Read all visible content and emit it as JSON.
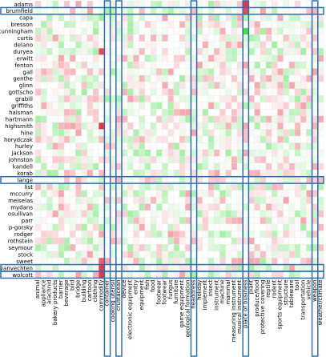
{
  "chart_data": {
    "type": "heatmap",
    "rows": [
      "adams",
      "brumfield",
      "capa",
      "bresson",
      "cunningham",
      "curtis",
      "delano",
      "duryea",
      "erwitt",
      "fenton",
      "gall",
      "genthe",
      "glinn",
      "gottscho",
      "grabill",
      "griffiths",
      "halsman",
      "hartmann",
      "highsmith",
      "hine",
      "horydczak",
      "hurley",
      "jackson",
      "johnston",
      "kandell",
      "korab",
      "lange",
      "list",
      "mccurry",
      "meiselas",
      "mydans",
      "osullivan",
      "parr",
      "p-gorsky",
      "rodger",
      "rothstein",
      "seymour",
      "stock",
      "sweet",
      "vanvechten",
      "wolcott"
    ],
    "columns": [
      "animal",
      "appliance",
      "arachnid",
      "bakery products",
      "barrier",
      "beverage",
      "bird",
      "bridge",
      "building",
      "cartoon",
      "clothing",
      "commodity",
      "container",
      "cooking utensil",
      "crustacean",
      "device",
      "electronic equipment",
      "entry",
      "equipment",
      "fish",
      "food",
      "footwear",
      "footwear",
      "fungus",
      "furniture",
      "game equipment",
      "geological formation",
      "headdress",
      "holiday",
      "implement",
      "insect",
      "instrument",
      "machine",
      "mammal",
      "measuring instrument",
      "musical instrument",
      "place of business",
      "plant",
      "produce/food",
      "protective covering",
      "reptile",
      "rodent",
      "sports equipment",
      "structure",
      "tableware",
      "tool",
      "transportation",
      "vehicle",
      "weapon",
      "weather/climate"
    ],
    "highlighted_rows": [
      "brumfield",
      "lange",
      "vanvechten",
      "wolcott"
    ],
    "highlighted_columns": [
      "container",
      "crustacean",
      "headdress",
      "place of business",
      "weapon"
    ],
    "colors": {
      "positive": "#33dd33",
      "negative": "#ee3344",
      "neutral": "#ffffff",
      "highlight": "#2f6fb0"
    },
    "strong_cells": [
      {
        "row": "adams",
        "column": "place of business",
        "value": -1.0
      },
      {
        "row": "brumfield",
        "column": "place of business",
        "value": -0.9
      },
      {
        "row": "cunningham",
        "column": "place of business",
        "value": 0.9
      },
      {
        "row": "duryea",
        "column": "commodity",
        "value": -0.9
      },
      {
        "row": "highsmith",
        "column": "commodity",
        "value": -1.0
      },
      {
        "row": "sweet",
        "column": "commodity",
        "value": -0.8
      },
      {
        "row": "vanvechten",
        "column": "commodity",
        "value": -1.0
      },
      {
        "row": "wolcott",
        "column": "commodity",
        "value": -1.0
      }
    ]
  }
}
